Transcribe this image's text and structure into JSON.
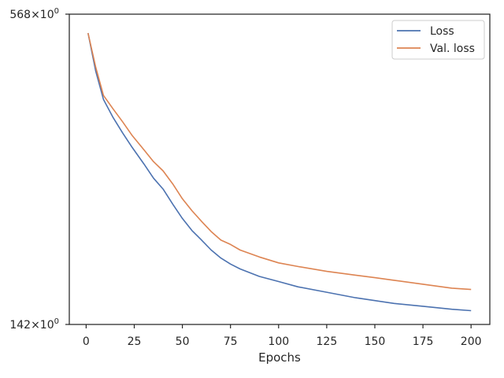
{
  "chart_data": {
    "type": "line",
    "title": "",
    "xlabel": "Epochs",
    "ylabel": "",
    "yscale": "log",
    "xlim": [
      -8.75,
      209.75
    ],
    "ylim": [
      142,
      568
    ],
    "xticks": [
      0,
      25,
      50,
      75,
      100,
      125,
      150,
      175,
      200
    ],
    "yticks": [
      {
        "value": 568,
        "mantissa": "568",
        "base": "10",
        "exp": "0"
      },
      {
        "value": 142,
        "mantissa": "142",
        "base": "10",
        "exp": "0"
      }
    ],
    "grid": false,
    "legend": {
      "position": "top-right"
    },
    "series": [
      {
        "name": "Loss",
        "color": "#4c72b0",
        "x": [
          1,
          5,
          9,
          14,
          19,
          24,
          30,
          35,
          40,
          45,
          50,
          55,
          60,
          65,
          70,
          75,
          80,
          90,
          100,
          110,
          125,
          140,
          150,
          160,
          175,
          190,
          200
        ],
        "y": [
          522,
          440,
          388,
          358,
          334,
          313,
          291,
          273,
          260,
          243,
          228,
          216,
          207,
          198,
          191,
          186,
          182,
          176,
          172,
          168,
          164,
          160,
          158,
          156,
          154,
          152,
          151
        ]
      },
      {
        "name": "Val. loss",
        "color": "#dd8452",
        "x": [
          1,
          5,
          9,
          14,
          19,
          24,
          30,
          35,
          40,
          45,
          50,
          55,
          60,
          65,
          70,
          75,
          80,
          90,
          100,
          110,
          125,
          140,
          150,
          160,
          175,
          190,
          200
        ],
        "y": [
          522,
          448,
          395,
          372,
          351,
          330,
          310,
          294,
          282,
          266,
          249,
          236,
          225,
          215,
          207,
          203,
          198,
          192,
          187,
          184,
          180,
          177,
          175,
          173,
          170,
          167,
          166
        ]
      }
    ]
  }
}
